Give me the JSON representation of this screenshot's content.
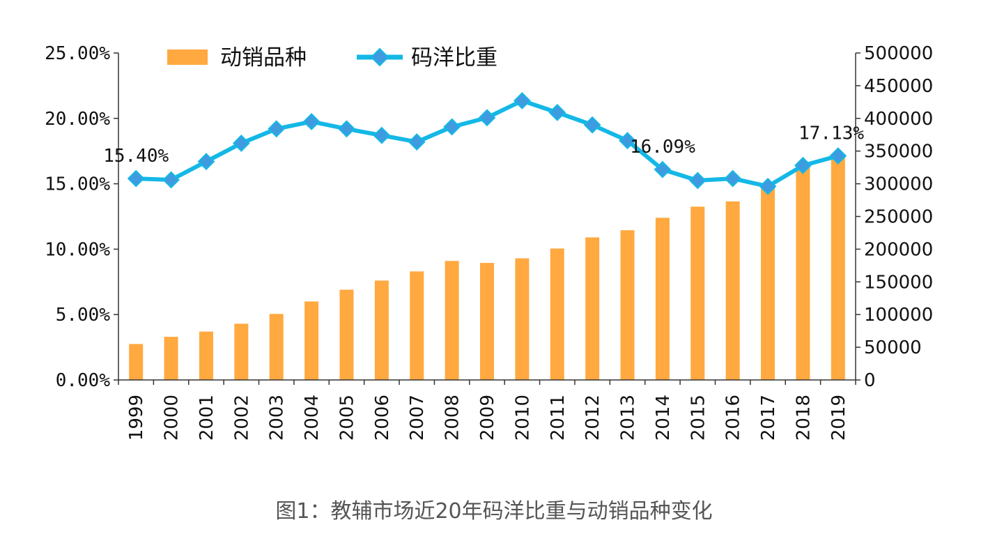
{
  "caption": "图1：教辅市场近20年码洋比重与动销品种变化",
  "colors": {
    "bars": "#FFA940",
    "line": "#14B8E6",
    "marker": "#3E9BE0",
    "axis": "#333333"
  },
  "chart_data": {
    "type": "bar",
    "categories": [
      "1999",
      "2000",
      "2001",
      "2002",
      "2003",
      "2004",
      "2005",
      "2006",
      "2007",
      "2008",
      "2009",
      "2010",
      "2011",
      "2012",
      "2013",
      "2014",
      "2015",
      "2016",
      "2017",
      "2018",
      "2019"
    ],
    "series": [
      {
        "name": "动销品种",
        "type": "bar",
        "axis": "right",
        "values": [
          55000,
          66000,
          74000,
          86000,
          101000,
          120000,
          138000,
          152000,
          166000,
          182000,
          179000,
          186000,
          201000,
          218000,
          229000,
          248000,
          265000,
          273000,
          295000,
          325000,
          342000
        ]
      },
      {
        "name": "码洋比重",
        "type": "line",
        "axis": "left",
        "marker": "diamond",
        "values": [
          15.4,
          15.3,
          16.7,
          18.1,
          19.2,
          19.75,
          19.2,
          18.7,
          18.2,
          19.35,
          20.05,
          21.35,
          20.45,
          19.5,
          18.3,
          16.09,
          15.25,
          15.4,
          14.8,
          16.4,
          17.13
        ]
      }
    ],
    "y_left": {
      "ylim": [
        0,
        25
      ],
      "ticks": [
        "0.00%",
        "5.00%",
        "10.00%",
        "15.00%",
        "20.00%",
        "25.00%"
      ]
    },
    "y_right": {
      "ylim": [
        0,
        500000
      ],
      "ticks": [
        "0",
        "50000",
        "100000",
        "150000",
        "200000",
        "250000",
        "300000",
        "350000",
        "400000",
        "450000",
        "500000"
      ]
    },
    "annotations": [
      {
        "index": 0,
        "text": "15.40%"
      },
      {
        "index": 15,
        "text": "16.09%"
      },
      {
        "index": 20,
        "text": "17.13%"
      }
    ],
    "legend_position": "top-left",
    "grid": false
  }
}
